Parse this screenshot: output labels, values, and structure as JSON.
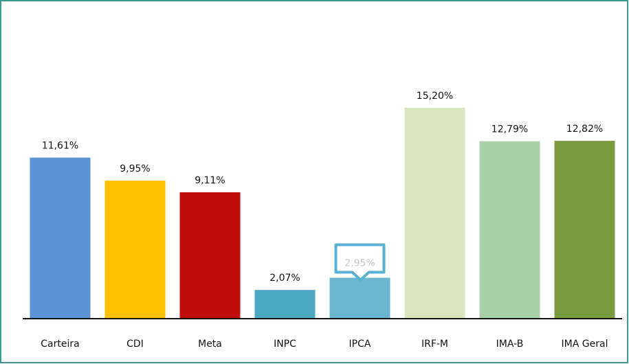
{
  "chart_data": {
    "type": "bar",
    "categories": [
      "Carteira",
      "CDI",
      "Meta",
      "INPC",
      "IPCA",
      "IRF-M",
      "IMA-B",
      "IMA Geral"
    ],
    "values": [
      11.61,
      9.95,
      9.11,
      2.07,
      2.95,
      15.2,
      12.79,
      12.82
    ],
    "value_labels": [
      "11,61%",
      "9,95%",
      "9,11%",
      "2,07%",
      "2,95%",
      "15,20%",
      "12,79%",
      "12,82%"
    ],
    "colors": [
      "#5b93d5",
      "#ffc000",
      "#c00b0b",
      "#4aa9c0",
      "#6ab7cf",
      "#d9e6c0",
      "#a8d1a8",
      "#7a9a40"
    ]
  }
}
